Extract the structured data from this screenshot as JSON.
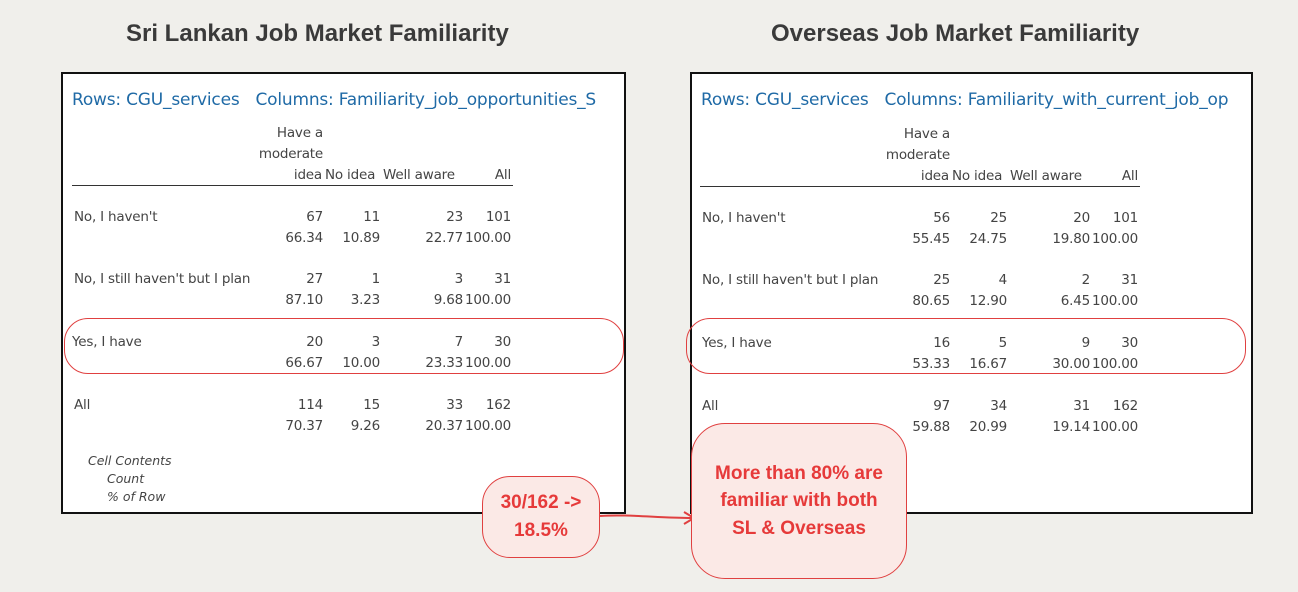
{
  "titles": {
    "left": "Sri Lankan Job Market Familiarity",
    "right": "Overseas Job Market Familiarity"
  },
  "left_table": {
    "rows_label": "Rows: CGU_services",
    "columns_label": "Columns: Familiarity_job_opportunities_S",
    "col_header_1": "Have a",
    "col_header_2": "moderate",
    "col_header_3": "idea",
    "col_no_idea": "No idea",
    "col_well_aware": "Well aware",
    "col_all": "All",
    "rows": [
      {
        "label": "No, I haven't",
        "count": [
          "67",
          "11",
          "23",
          "101"
        ],
        "pct": [
          "66.34",
          "10.89",
          "22.77",
          "100.00"
        ]
      },
      {
        "label": "No, I still haven't but I plan",
        "count": [
          "27",
          "1",
          "3",
          "31"
        ],
        "pct": [
          "87.10",
          "3.23",
          "9.68",
          "100.00"
        ]
      },
      {
        "label": "Yes, I have",
        "count": [
          "20",
          "3",
          "7",
          "30"
        ],
        "pct": [
          "66.67",
          "10.00",
          "23.33",
          "100.00"
        ]
      },
      {
        "label": "All",
        "count": [
          "114",
          "15",
          "33",
          "162"
        ],
        "pct": [
          "70.37",
          "9.26",
          "20.37",
          "100.00"
        ]
      }
    ],
    "cell_contents_title": "Cell Contents",
    "cell_contents_1": "Count",
    "cell_contents_2": "% of Row"
  },
  "right_table": {
    "rows_label": "Rows: CGU_services",
    "columns_label": "Columns: Familiarity_with_current_job_op",
    "col_header_1": "Have a",
    "col_header_2": "moderate",
    "col_header_3": "idea",
    "col_no_idea": "No idea",
    "col_well_aware": "Well aware",
    "col_all": "All",
    "rows": [
      {
        "label": "No, I haven't",
        "count": [
          "56",
          "25",
          "20",
          "101"
        ],
        "pct": [
          "55.45",
          "24.75",
          "19.80",
          "100.00"
        ]
      },
      {
        "label": "No, I still haven't but I plan",
        "count": [
          "25",
          "4",
          "2",
          "31"
        ],
        "pct": [
          "80.65",
          "12.90",
          "6.45",
          "100.00"
        ]
      },
      {
        "label": "Yes, I have",
        "count": [
          "16",
          "5",
          "9",
          "30"
        ],
        "pct": [
          "53.33",
          "16.67",
          "30.00",
          "100.00"
        ]
      },
      {
        "label": "All",
        "count": [
          "97",
          "34",
          "31",
          "162"
        ],
        "pct": [
          "59.88",
          "20.99",
          "19.14",
          "100.00"
        ]
      }
    ]
  },
  "callouts": {
    "small_line1": "30/162 ->",
    "small_line2": "18.5%",
    "big_line1": "More than 80% are",
    "big_line2": "familiar with both",
    "big_line3": "SL & Overseas"
  },
  "colors": {
    "accent": "#e04040",
    "header_blue": "#1f6aa6",
    "background": "#f0efeb"
  }
}
